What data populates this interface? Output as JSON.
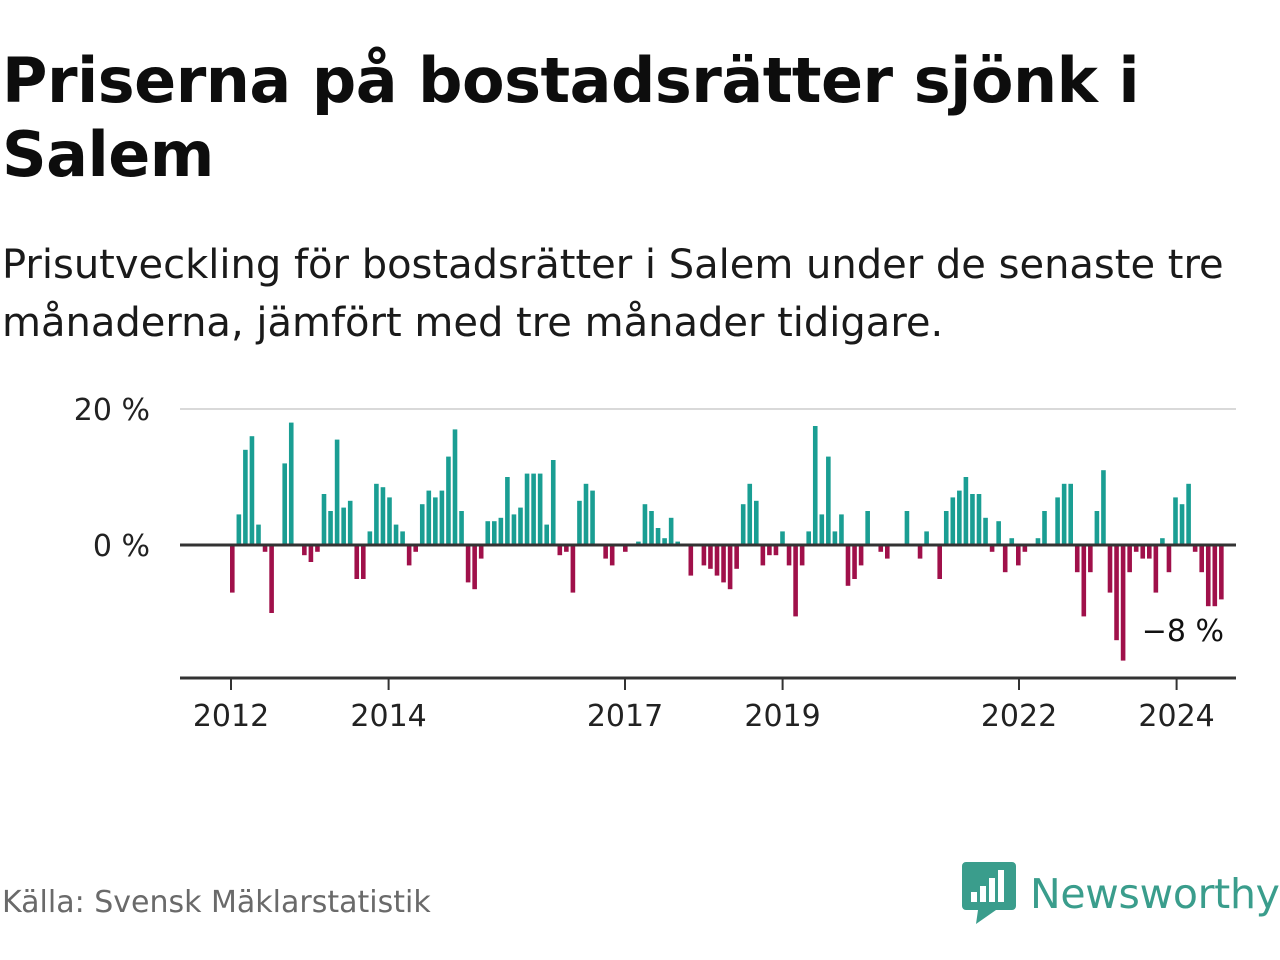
{
  "title": "Priserna på bostadsrätter sjönk i Salem",
  "subtitle": "Prisutveckling för bostadsrätter i Salem under de senaste tre månaderna, jämfört med tre månader tidigare.",
  "source": "Källa: Svensk Mäklarstatistik",
  "brand": {
    "name": "Newsworthy",
    "icon": "newsworthy-logo-icon",
    "color": "#3a9d8c"
  },
  "colors": {
    "positive": "#1a9e93",
    "negative": "#a0104a",
    "grid": "#d9d9d9",
    "axis": "#333333"
  },
  "chart_data": {
    "type": "bar",
    "title": "",
    "xlabel": "",
    "ylabel": "",
    "unit": "%",
    "ylim": [
      -20,
      20
    ],
    "yticks": [
      {
        "value": 0,
        "label": "0 %"
      },
      {
        "value": 20,
        "label": "20 %"
      }
    ],
    "xticks": [
      {
        "value": 2012,
        "label": "2012"
      },
      {
        "value": 2014,
        "label": "2014"
      },
      {
        "value": 2017,
        "label": "2017"
      },
      {
        "value": 2019,
        "label": "2019"
      },
      {
        "value": 2022,
        "label": "2022"
      },
      {
        "value": 2024,
        "label": "2024"
      }
    ],
    "x_start": 2012,
    "x_step": 0.0833333,
    "values": [
      -7,
      4.5,
      14,
      16,
      3,
      -1,
      -10,
      0,
      12,
      18,
      0,
      -1.5,
      -2.5,
      -1,
      7.5,
      5,
      15.5,
      5.5,
      6.5,
      -5,
      -5,
      2,
      9,
      8.5,
      7,
      3,
      2,
      -3,
      -1,
      6,
      8,
      7,
      8,
      13,
      17,
      5,
      -5.5,
      -6.5,
      -2,
      3.5,
      3.5,
      4,
      10,
      4.5,
      5.5,
      10.5,
      10.5,
      10.5,
      3,
      12.5,
      -1.5,
      -1,
      -7,
      6.5,
      9,
      8,
      0,
      -2,
      -3,
      0,
      -1,
      0,
      0.5,
      6,
      5,
      2.5,
      1,
      4,
      0.5,
      0,
      -4.5,
      0,
      -3,
      -3.5,
      -4.5,
      -5.5,
      -6.5,
      -3.5,
      6,
      9,
      6.5,
      -3,
      -1.5,
      -1.5,
      2,
      -3,
      -10.5,
      -3,
      2,
      17.5,
      4.5,
      13,
      2,
      4.5,
      -6,
      -5,
      -3,
      5,
      0,
      -1,
      -2,
      0,
      0,
      5,
      0,
      -2,
      2,
      0,
      -5,
      5,
      7,
      8,
      10,
      7.5,
      7.5,
      4,
      -1,
      3.5,
      -4,
      1,
      -3,
      -1,
      0,
      1,
      5,
      0,
      7,
      9,
      9,
      -4,
      -10.5,
      -4,
      5,
      11,
      -7,
      -14,
      -17,
      -4,
      -1,
      -2,
      -2,
      -7,
      1,
      -4,
      7,
      6,
      9,
      -1,
      -4,
      -9,
      -9,
      -8
    ],
    "annotation": {
      "index": 151,
      "label": "−8 %"
    }
  }
}
